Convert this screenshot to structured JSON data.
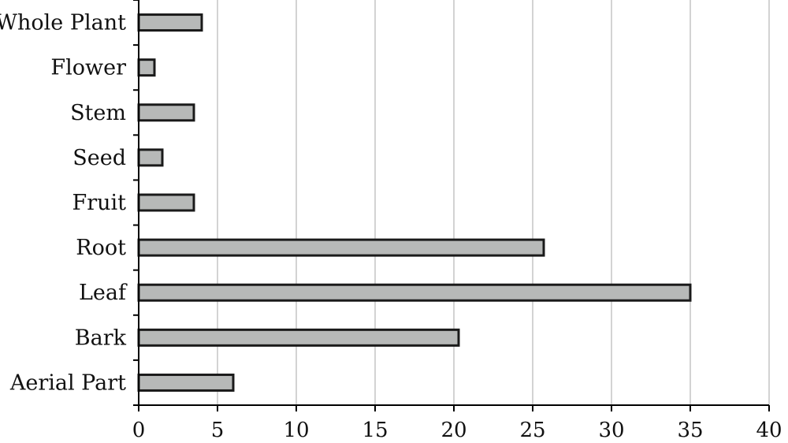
{
  "chart_data": {
    "type": "bar",
    "orientation": "horizontal",
    "title": "",
    "xlabel": "",
    "ylabel": "",
    "categories": [
      "Whole Plant",
      "Flower",
      "Stem",
      "Seed",
      "Fruit",
      "Root",
      "Leaf",
      "Bark",
      "Aerial Part"
    ],
    "values": [
      4,
      1,
      3.5,
      1.5,
      3.5,
      25.7,
      35,
      20.3,
      6
    ],
    "xlim": [
      0,
      40
    ],
    "xticks": [
      "0",
      "5",
      "10",
      "15",
      "20",
      "25",
      "30",
      "35",
      "40"
    ],
    "grid": "vertical",
    "legend": "none",
    "colors": {
      "bar_fill": "#b7b9b8",
      "bar_stroke": "#1a1a1a",
      "grid": "#d3d3d3",
      "axis": "#000000"
    }
  }
}
